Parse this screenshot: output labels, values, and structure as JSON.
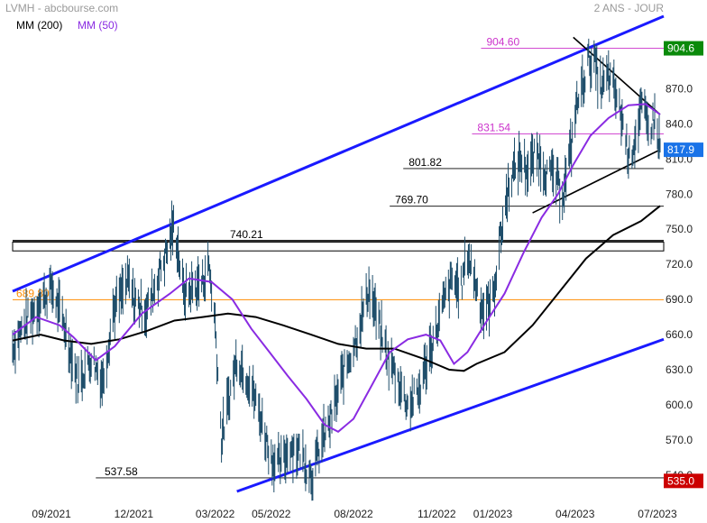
{
  "header": {
    "source": "LVMH - abcbourse.com",
    "period": "2 ANS - JOUR",
    "legend": [
      {
        "label": "MM (200)",
        "color": "#000000"
      },
      {
        "label": "MM (50)",
        "color": "#8a2be2"
      }
    ]
  },
  "chart_data": {
    "type": "line",
    "title": "",
    "xlabel": "",
    "ylabel": "",
    "ylim": [
      526,
      932
    ],
    "xlim": [
      "2021-07-20",
      "2023-07-10"
    ],
    "grid": false,
    "legend_position": "top-left",
    "x_ticks": [
      {
        "label": "09/2021",
        "date": "2021-09-01"
      },
      {
        "label": "12/2021",
        "date": "2021-12-01"
      },
      {
        "label": "03/2022",
        "date": "2022-03-01"
      },
      {
        "label": "05/2022",
        "date": "2022-05-02"
      },
      {
        "label": "08/2022",
        "date": "2022-08-01"
      },
      {
        "label": "11/2022",
        "date": "2022-11-01"
      },
      {
        "label": "01/2023",
        "date": "2023-01-02"
      },
      {
        "label": "04/2023",
        "date": "2023-04-03"
      },
      {
        "label": "07/2023",
        "date": "2023-07-03"
      }
    ],
    "y_ticks": [
      540.0,
      570.0,
      600.0,
      630.0,
      660.0,
      690.0,
      720.0,
      750.0,
      780.0,
      810.0,
      840.0,
      870.0
    ],
    "y_tick_labels": [
      "540.0",
      "570.0",
      "600.0",
      "630.0",
      "660.0",
      "690.0",
      "720.0",
      "750.0",
      "780.0",
      "810.0",
      "840.0",
      "870.0"
    ],
    "price_series": {
      "color": "#1f4e6b",
      "points": [
        [
          "2021-07-20",
          650
        ],
        [
          "2021-08-05",
          672
        ],
        [
          "2021-08-20",
          688
        ],
        [
          "2021-09-01",
          700
        ],
        [
          "2021-09-15",
          668
        ],
        [
          "2021-09-30",
          620
        ],
        [
          "2021-10-15",
          640
        ],
        [
          "2021-10-28",
          620
        ],
        [
          "2021-11-08",
          680
        ],
        [
          "2021-11-25",
          705
        ],
        [
          "2021-12-01",
          690
        ],
        [
          "2021-12-15",
          680
        ],
        [
          "2021-12-28",
          710
        ],
        [
          "2022-01-06",
          730
        ],
        [
          "2022-01-15",
          755
        ],
        [
          "2022-01-25",
          695
        ],
        [
          "2022-02-05",
          700
        ],
        [
          "2022-02-15",
          705
        ],
        [
          "2022-02-22",
          720
        ],
        [
          "2022-03-01",
          670
        ],
        [
          "2022-03-08",
          570
        ],
        [
          "2022-03-15",
          600
        ],
        [
          "2022-03-25",
          640
        ],
        [
          "2022-04-08",
          620
        ],
        [
          "2022-04-20",
          590
        ],
        [
          "2022-05-02",
          555
        ],
        [
          "2022-05-12",
          548
        ],
        [
          "2022-05-23",
          565
        ],
        [
          "2022-06-03",
          560
        ],
        [
          "2022-06-16",
          540
        ],
        [
          "2022-06-28",
          570
        ],
        [
          "2022-07-08",
          590
        ],
        [
          "2022-07-20",
          625
        ],
        [
          "2022-08-01",
          650
        ],
        [
          "2022-08-12",
          680
        ],
        [
          "2022-08-18",
          700
        ],
        [
          "2022-08-28",
          670
        ],
        [
          "2022-09-08",
          640
        ],
        [
          "2022-09-20",
          620
        ],
        [
          "2022-09-30",
          600
        ],
        [
          "2022-10-12",
          610
        ],
        [
          "2022-10-22",
          640
        ],
        [
          "2022-11-01",
          665
        ],
        [
          "2022-11-10",
          690
        ],
        [
          "2022-11-18",
          705
        ],
        [
          "2022-11-28",
          700
        ],
        [
          "2022-12-05",
          730
        ],
        [
          "2022-12-12",
          710
        ],
        [
          "2022-12-22",
          680
        ],
        [
          "2023-01-02",
          690
        ],
        [
          "2023-01-10",
          740
        ],
        [
          "2023-01-20",
          790
        ],
        [
          "2023-02-01",
          810
        ],
        [
          "2023-02-10",
          800
        ],
        [
          "2023-02-20",
          815
        ],
        [
          "2023-03-01",
          800
        ],
        [
          "2023-03-10",
          795
        ],
        [
          "2023-03-20",
          780
        ],
        [
          "2023-03-30",
          820
        ],
        [
          "2023-04-03",
          850
        ],
        [
          "2023-04-10",
          870
        ],
        [
          "2023-04-18",
          895
        ],
        [
          "2023-04-25",
          890
        ],
        [
          "2023-05-02",
          870
        ],
        [
          "2023-05-10",
          880
        ],
        [
          "2023-05-18",
          865
        ],
        [
          "2023-05-26",
          840
        ],
        [
          "2023-06-02",
          810
        ],
        [
          "2023-06-09",
          830
        ],
        [
          "2023-06-16",
          855
        ],
        [
          "2023-06-23",
          835
        ],
        [
          "2023-06-30",
          845
        ],
        [
          "2023-07-06",
          818
        ]
      ]
    },
    "series": [
      {
        "name": "MM (200)",
        "color": "#000000",
        "points": [
          [
            "2021-07-20",
            655
          ],
          [
            "2021-08-20",
            660
          ],
          [
            "2021-09-15",
            655
          ],
          [
            "2021-10-15",
            652
          ],
          [
            "2021-11-15",
            656
          ],
          [
            "2021-12-15",
            663
          ],
          [
            "2022-01-15",
            672
          ],
          [
            "2022-02-15",
            675
          ],
          [
            "2022-03-15",
            678
          ],
          [
            "2022-04-15",
            675
          ],
          [
            "2022-05-15",
            668
          ],
          [
            "2022-06-15",
            660
          ],
          [
            "2022-07-15",
            652
          ],
          [
            "2022-08-15",
            648
          ],
          [
            "2022-09-15",
            648
          ],
          [
            "2022-10-15",
            640
          ],
          [
            "2022-11-15",
            630
          ],
          [
            "2022-12-01",
            629
          ],
          [
            "2022-12-15",
            635
          ],
          [
            "2023-01-15",
            645
          ],
          [
            "2023-02-15",
            668
          ],
          [
            "2023-03-15",
            695
          ],
          [
            "2023-04-15",
            725
          ],
          [
            "2023-05-15",
            745
          ],
          [
            "2023-06-15",
            757
          ],
          [
            "2023-07-06",
            770
          ]
        ]
      },
      {
        "name": "MM (50)",
        "color": "#8a2be2",
        "points": [
          [
            "2021-07-20",
            660
          ],
          [
            "2021-08-15",
            675
          ],
          [
            "2021-09-10",
            668
          ],
          [
            "2021-09-25",
            658
          ],
          [
            "2021-10-20",
            638
          ],
          [
            "2021-11-10",
            650
          ],
          [
            "2021-12-10",
            678
          ],
          [
            "2022-01-10",
            695
          ],
          [
            "2022-01-31",
            708
          ],
          [
            "2022-02-25",
            705
          ],
          [
            "2022-03-20",
            690
          ],
          [
            "2022-04-10",
            665
          ],
          [
            "2022-04-30",
            645
          ],
          [
            "2022-05-20",
            625
          ],
          [
            "2022-06-10",
            605
          ],
          [
            "2022-06-30",
            583
          ],
          [
            "2022-07-15",
            577
          ],
          [
            "2022-08-01",
            588
          ],
          [
            "2022-08-20",
            615
          ],
          [
            "2022-09-10",
            645
          ],
          [
            "2022-09-30",
            656
          ],
          [
            "2022-10-20",
            660
          ],
          [
            "2022-11-05",
            655
          ],
          [
            "2022-11-20",
            635
          ],
          [
            "2022-12-05",
            645
          ],
          [
            "2022-12-25",
            670
          ],
          [
            "2023-01-15",
            695
          ],
          [
            "2023-02-05",
            730
          ],
          [
            "2023-02-25",
            760
          ],
          [
            "2023-03-15",
            780
          ],
          [
            "2023-04-01",
            805
          ],
          [
            "2023-04-20",
            830
          ],
          [
            "2023-05-10",
            845
          ],
          [
            "2023-06-01",
            856
          ],
          [
            "2023-06-20",
            857
          ],
          [
            "2023-07-06",
            848
          ]
        ]
      }
    ],
    "horizontal_levels": [
      {
        "label": "904.60",
        "value": 904.6,
        "color": "#cc33cc",
        "from": "2022-12-20",
        "to": "2023-07-10"
      },
      {
        "label": "831.54",
        "value": 831.54,
        "color": "#cc33cc",
        "from": "2022-12-10",
        "to": "2023-07-10"
      },
      {
        "label": "801.82",
        "value": 801.82,
        "color": "#000000",
        "from": "2022-09-25",
        "to": "2023-07-10"
      },
      {
        "label": "769.70",
        "value": 769.7,
        "color": "#000000",
        "from": "2022-09-10",
        "to": "2023-07-10"
      },
      {
        "label": "740.21",
        "value": 740.21,
        "color": "#000000",
        "from": "2021-07-20",
        "to": "2023-07-10"
      },
      {
        "label": "689.80",
        "value": 689.8,
        "color": "#ff8c00",
        "from": "2021-07-20",
        "to": "2023-07-10"
      },
      {
        "label": "537.58",
        "value": 537.58,
        "color": "#000000",
        "from": "2021-10-20",
        "to": "2023-07-10"
      }
    ],
    "zone_band": {
      "from_value": 731.5,
      "to_value": 739.0
    },
    "trendlines": [
      {
        "color": "#1a1aff",
        "from": [
          "2021-07-20",
          697
        ],
        "to": [
          "2023-07-10",
          932
        ]
      },
      {
        "color": "#1a1aff",
        "from": [
          "2022-03-25",
          526
        ],
        "to": [
          "2023-07-10",
          656
        ]
      },
      {
        "color": "#000000",
        "from": [
          "2023-04-01",
          914
        ],
        "to": [
          "2023-07-06",
          848
        ]
      },
      {
        "color": "#000000",
        "from": [
          "2023-02-15",
          764
        ],
        "to": [
          "2023-07-06",
          818
        ]
      }
    ],
    "price_tags": [
      {
        "label": "904.6",
        "value": 904.6,
        "color": "#0a8a0a"
      },
      {
        "label": "817.9",
        "value": 817.9,
        "color": "#1a73e8"
      },
      {
        "label": "535.0",
        "value": 535.0,
        "color": "#cc0000"
      }
    ]
  }
}
